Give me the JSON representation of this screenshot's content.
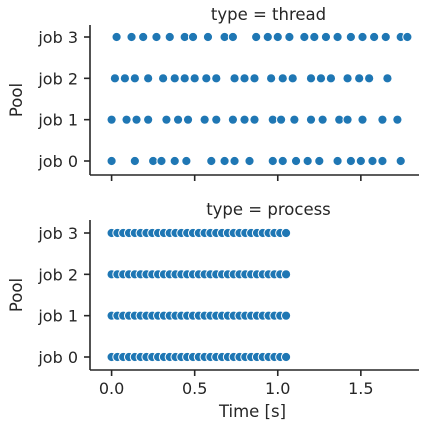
{
  "chart_data": [
    {
      "type": "scatter",
      "title": "type = thread",
      "xlabel": "",
      "ylabel": "Pool",
      "xlim": [
        -0.13,
        1.85
      ],
      "y_categories": [
        "job 0",
        "job 1",
        "job 2",
        "job 3"
      ],
      "xticks": [
        0.0,
        0.5,
        1.0,
        1.5
      ],
      "xtick_labels": [
        "",
        "",
        "",
        ""
      ],
      "point_color": "#1f77b4",
      "series": [
        {
          "y": "job 0",
          "x": [
            0.0,
            0.14,
            0.25,
            0.3,
            0.38,
            0.45,
            0.6,
            0.68,
            0.74,
            0.83,
            0.97,
            1.03,
            1.11,
            1.18,
            1.25,
            1.36,
            1.44,
            1.5,
            1.57,
            1.63,
            1.74
          ]
        },
        {
          "y": "job 1",
          "x": [
            0.0,
            0.09,
            0.15,
            0.22,
            0.33,
            0.4,
            0.46,
            0.56,
            0.63,
            0.73,
            0.8,
            0.86,
            0.97,
            1.02,
            1.1,
            1.2,
            1.27,
            1.37,
            1.42,
            1.51,
            1.63,
            1.72
          ]
        },
        {
          "y": "job 2",
          "x": [
            0.02,
            0.08,
            0.14,
            0.22,
            0.31,
            0.38,
            0.44,
            0.5,
            0.57,
            0.63,
            0.74,
            0.8,
            0.86,
            0.96,
            1.03,
            1.09,
            1.2,
            1.26,
            1.32,
            1.42,
            1.49,
            1.55,
            1.66
          ]
        },
        {
          "y": "job 3",
          "x": [
            0.03,
            0.12,
            0.19,
            0.27,
            0.35,
            0.44,
            0.49,
            0.58,
            0.68,
            0.73,
            0.87,
            0.94,
            1.0,
            1.07,
            1.16,
            1.22,
            1.29,
            1.36,
            1.44,
            1.51,
            1.58,
            1.65,
            1.74,
            1.78
          ]
        }
      ]
    },
    {
      "type": "scatter",
      "title": "type = process",
      "xlabel": "Time [s]",
      "ylabel": "Pool",
      "xlim": [
        -0.13,
        1.85
      ],
      "y_categories": [
        "job 0",
        "job 1",
        "job 2",
        "job 3"
      ],
      "xticks": [
        0.0,
        0.5,
        1.0,
        1.5
      ],
      "xtick_labels": [
        "0.0",
        "0.5",
        "1.0",
        "1.5"
      ],
      "point_color": "#1f77b4",
      "series": [
        {
          "y": "job 0",
          "x": [
            0.0,
            0.035,
            0.07,
            0.105,
            0.14,
            0.175,
            0.21,
            0.245,
            0.28,
            0.315,
            0.35,
            0.385,
            0.42,
            0.455,
            0.49,
            0.525,
            0.56,
            0.595,
            0.63,
            0.665,
            0.7,
            0.735,
            0.77,
            0.805,
            0.84,
            0.875,
            0.91,
            0.945,
            0.98,
            1.015,
            1.05
          ]
        },
        {
          "y": "job 1",
          "x": [
            0.0,
            0.035,
            0.07,
            0.105,
            0.14,
            0.175,
            0.21,
            0.245,
            0.28,
            0.315,
            0.35,
            0.385,
            0.42,
            0.455,
            0.49,
            0.525,
            0.56,
            0.595,
            0.63,
            0.665,
            0.7,
            0.735,
            0.77,
            0.805,
            0.84,
            0.875,
            0.91,
            0.945,
            0.98,
            1.015,
            1.05
          ]
        },
        {
          "y": "job 2",
          "x": [
            0.0,
            0.035,
            0.07,
            0.105,
            0.14,
            0.175,
            0.21,
            0.245,
            0.28,
            0.315,
            0.35,
            0.385,
            0.42,
            0.455,
            0.49,
            0.525,
            0.56,
            0.595,
            0.63,
            0.665,
            0.7,
            0.735,
            0.77,
            0.805,
            0.84,
            0.875,
            0.91,
            0.945,
            0.98,
            1.015,
            1.05
          ]
        },
        {
          "y": "job 3",
          "x": [
            0.0,
            0.035,
            0.07,
            0.105,
            0.14,
            0.175,
            0.21,
            0.245,
            0.28,
            0.315,
            0.35,
            0.385,
            0.42,
            0.455,
            0.49,
            0.525,
            0.56,
            0.595,
            0.63,
            0.665,
            0.7,
            0.735,
            0.77,
            0.805,
            0.84,
            0.875,
            0.91,
            0.945,
            0.98,
            1.015,
            1.05
          ]
        }
      ]
    }
  ]
}
